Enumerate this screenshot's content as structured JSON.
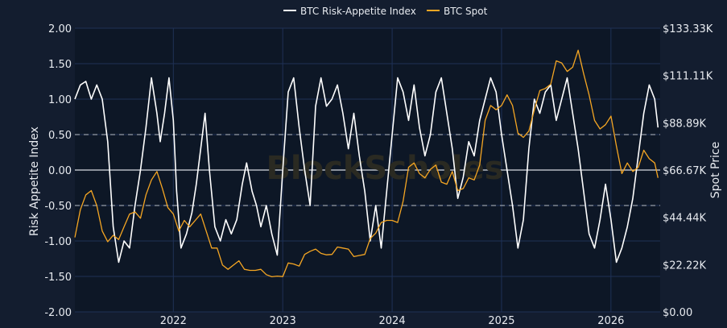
{
  "chart_data": {
    "type": "line",
    "legend_position": "top-center",
    "grid": true,
    "watermark": "BlockScholes",
    "left_axis": {
      "label": "Risk Appetite Index",
      "ylim": [
        -2.0,
        2.0
      ],
      "ticks": [
        "2.00",
        "1.50",
        "1.00",
        "0.50",
        "0.00",
        "-0.50",
        "-1.00",
        "-1.50",
        "-2.00"
      ],
      "tick_values": [
        2.0,
        1.5,
        1.0,
        0.5,
        0.0,
        -0.5,
        -1.0,
        -1.5,
        -2.0
      ]
    },
    "right_axis": {
      "label": "Spot Price",
      "ylim": [
        0,
        133330
      ],
      "ticks": [
        "$133.33K",
        "$111.11K",
        "$88.89K",
        "$66.67K",
        "$44.44K",
        "$22.22K",
        "$0.00"
      ],
      "tick_values": [
        133330,
        111110,
        88890,
        66670,
        44440,
        22220,
        0
      ]
    },
    "x_axis": {
      "range": [
        2021.1,
        2026.45
      ],
      "ticks": [
        "2022",
        "2023",
        "2024",
        "2025",
        "2026"
      ],
      "tick_values": [
        2022,
        2023,
        2024,
        2025,
        2026
      ]
    },
    "reference_lines": [
      {
        "value": 0.5,
        "style": "dashed"
      },
      {
        "value": 0.0,
        "style": "solid"
      },
      {
        "value": -0.5,
        "style": "dashed"
      }
    ],
    "series": [
      {
        "name": "BTC Risk-Appetite Index",
        "axis": "left",
        "color": "#ffffff",
        "points": [
          [
            2021.1,
            1.0
          ],
          [
            2021.15,
            1.2
          ],
          [
            2021.2,
            1.25
          ],
          [
            2021.25,
            1.0
          ],
          [
            2021.3,
            1.2
          ],
          [
            2021.35,
            1.0
          ],
          [
            2021.4,
            0.4
          ],
          [
            2021.45,
            -0.8
          ],
          [
            2021.5,
            -1.3
          ],
          [
            2021.55,
            -1.0
          ],
          [
            2021.6,
            -1.1
          ],
          [
            2021.65,
            -0.5
          ],
          [
            2021.7,
            0.0
          ],
          [
            2021.75,
            0.6
          ],
          [
            2021.8,
            1.3
          ],
          [
            2021.85,
            0.8
          ],
          [
            2021.88,
            0.4
          ],
          [
            2021.92,
            0.8
          ],
          [
            2021.96,
            1.3
          ],
          [
            2022.0,
            0.7
          ],
          [
            2022.03,
            -0.3
          ],
          [
            2022.07,
            -1.1
          ],
          [
            2022.12,
            -0.9
          ],
          [
            2022.17,
            -0.6
          ],
          [
            2022.21,
            -0.2
          ],
          [
            2022.25,
            0.3
          ],
          [
            2022.29,
            0.8
          ],
          [
            2022.33,
            0.0
          ],
          [
            2022.38,
            -0.8
          ],
          [
            2022.43,
            -1.0
          ],
          [
            2022.48,
            -0.7
          ],
          [
            2022.53,
            -0.9
          ],
          [
            2022.58,
            -0.7
          ],
          [
            2022.63,
            -0.2
          ],
          [
            2022.67,
            0.1
          ],
          [
            2022.72,
            -0.3
          ],
          [
            2022.76,
            -0.5
          ],
          [
            2022.8,
            -0.8
          ],
          [
            2022.85,
            -0.5
          ],
          [
            2022.9,
            -0.9
          ],
          [
            2022.95,
            -1.2
          ],
          [
            2023.0,
            0.0
          ],
          [
            2023.05,
            1.1
          ],
          [
            2023.1,
            1.3
          ],
          [
            2023.15,
            0.6
          ],
          [
            2023.2,
            0.0
          ],
          [
            2023.25,
            -0.5
          ],
          [
            2023.3,
            0.9
          ],
          [
            2023.35,
            1.3
          ],
          [
            2023.4,
            0.9
          ],
          [
            2023.45,
            1.0
          ],
          [
            2023.5,
            1.2
          ],
          [
            2023.55,
            0.8
          ],
          [
            2023.6,
            0.3
          ],
          [
            2023.65,
            0.8
          ],
          [
            2023.7,
            0.2
          ],
          [
            2023.75,
            -0.3
          ],
          [
            2023.8,
            -1.0
          ],
          [
            2023.85,
            -0.5
          ],
          [
            2023.9,
            -1.1
          ],
          [
            2023.95,
            -0.3
          ],
          [
            2024.0,
            0.5
          ],
          [
            2024.05,
            1.3
          ],
          [
            2024.1,
            1.1
          ],
          [
            2024.15,
            0.7
          ],
          [
            2024.2,
            1.2
          ],
          [
            2024.25,
            0.6
          ],
          [
            2024.3,
            0.2
          ],
          [
            2024.35,
            0.5
          ],
          [
            2024.4,
            1.1
          ],
          [
            2024.45,
            1.3
          ],
          [
            2024.5,
            0.8
          ],
          [
            2024.55,
            0.3
          ],
          [
            2024.6,
            -0.4
          ],
          [
            2024.65,
            -0.1
          ],
          [
            2024.7,
            0.4
          ],
          [
            2024.75,
            0.2
          ],
          [
            2024.8,
            0.7
          ],
          [
            2024.85,
            1.0
          ],
          [
            2024.9,
            1.3
          ],
          [
            2024.95,
            1.1
          ],
          [
            2025.0,
            0.5
          ],
          [
            2025.05,
            0.0
          ],
          [
            2025.1,
            -0.5
          ],
          [
            2025.15,
            -1.1
          ],
          [
            2025.2,
            -0.7
          ],
          [
            2025.25,
            0.3
          ],
          [
            2025.3,
            1.0
          ],
          [
            2025.35,
            0.8
          ],
          [
            2025.4,
            1.1
          ],
          [
            2025.45,
            1.2
          ],
          [
            2025.5,
            0.7
          ],
          [
            2025.55,
            1.0
          ],
          [
            2025.6,
            1.3
          ],
          [
            2025.65,
            0.8
          ],
          [
            2025.7,
            0.3
          ],
          [
            2025.75,
            -0.3
          ],
          [
            2025.8,
            -0.9
          ],
          [
            2025.85,
            -1.1
          ],
          [
            2025.9,
            -0.7
          ],
          [
            2025.95,
            -0.2
          ],
          [
            2026.0,
            -0.7
          ],
          [
            2026.05,
            -1.3
          ],
          [
            2026.1,
            -1.1
          ],
          [
            2026.15,
            -0.8
          ],
          [
            2026.2,
            -0.4
          ],
          [
            2026.25,
            0.2
          ],
          [
            2026.3,
            0.8
          ],
          [
            2026.35,
            1.2
          ],
          [
            2026.4,
            1.0
          ],
          [
            2026.43,
            0.6
          ]
        ]
      },
      {
        "name": "BTC Spot",
        "axis": "right",
        "color": "#f5a623",
        "points": [
          [
            2021.1,
            35000
          ],
          [
            2021.15,
            48000
          ],
          [
            2021.2,
            55000
          ],
          [
            2021.25,
            57000
          ],
          [
            2021.3,
            50000
          ],
          [
            2021.35,
            38000
          ],
          [
            2021.4,
            33000
          ],
          [
            2021.45,
            36000
          ],
          [
            2021.5,
            34000
          ],
          [
            2021.55,
            40000
          ],
          [
            2021.6,
            46000
          ],
          [
            2021.65,
            47000
          ],
          [
            2021.7,
            44000
          ],
          [
            2021.75,
            55000
          ],
          [
            2021.8,
            62000
          ],
          [
            2021.85,
            66000
          ],
          [
            2021.9,
            58000
          ],
          [
            2021.95,
            49000
          ],
          [
            2022.0,
            46000
          ],
          [
            2022.05,
            38000
          ],
          [
            2022.1,
            43000
          ],
          [
            2022.15,
            40000
          ],
          [
            2022.2,
            43000
          ],
          [
            2022.25,
            46000
          ],
          [
            2022.3,
            38000
          ],
          [
            2022.35,
            30000
          ],
          [
            2022.4,
            30000
          ],
          [
            2022.45,
            22000
          ],
          [
            2022.5,
            20000
          ],
          [
            2022.55,
            22000
          ],
          [
            2022.6,
            24000
          ],
          [
            2022.65,
            20000
          ],
          [
            2022.7,
            19500
          ],
          [
            2022.75,
            19500
          ],
          [
            2022.8,
            20000
          ],
          [
            2022.85,
            17500
          ],
          [
            2022.9,
            16500
          ],
          [
            2022.95,
            16800
          ],
          [
            2023.0,
            16600
          ],
          [
            2023.05,
            23000
          ],
          [
            2023.1,
            22500
          ],
          [
            2023.15,
            21500
          ],
          [
            2023.2,
            27000
          ],
          [
            2023.25,
            28500
          ],
          [
            2023.3,
            29500
          ],
          [
            2023.35,
            27500
          ],
          [
            2023.4,
            26800
          ],
          [
            2023.45,
            27000
          ],
          [
            2023.5,
            30500
          ],
          [
            2023.55,
            30000
          ],
          [
            2023.6,
            29500
          ],
          [
            2023.65,
            26000
          ],
          [
            2023.7,
            26500
          ],
          [
            2023.75,
            27000
          ],
          [
            2023.8,
            34500
          ],
          [
            2023.85,
            37000
          ],
          [
            2023.9,
            42000
          ],
          [
            2023.95,
            43000
          ],
          [
            2024.0,
            43000
          ],
          [
            2024.05,
            42000
          ],
          [
            2024.1,
            52000
          ],
          [
            2024.15,
            68000
          ],
          [
            2024.2,
            70000
          ],
          [
            2024.25,
            65000
          ],
          [
            2024.3,
            63000
          ],
          [
            2024.35,
            67000
          ],
          [
            2024.4,
            69000
          ],
          [
            2024.45,
            61000
          ],
          [
            2024.5,
            60000
          ],
          [
            2024.55,
            66000
          ],
          [
            2024.6,
            57000
          ],
          [
            2024.65,
            58000
          ],
          [
            2024.7,
            63000
          ],
          [
            2024.75,
            62000
          ],
          [
            2024.8,
            69000
          ],
          [
            2024.85,
            90000
          ],
          [
            2024.9,
            97000
          ],
          [
            2024.95,
            95000
          ],
          [
            2025.0,
            97000
          ],
          [
            2025.05,
            102000
          ],
          [
            2025.1,
            97000
          ],
          [
            2025.15,
            84000
          ],
          [
            2025.2,
            82000
          ],
          [
            2025.25,
            85000
          ],
          [
            2025.3,
            95000
          ],
          [
            2025.35,
            104000
          ],
          [
            2025.4,
            105000
          ],
          [
            2025.45,
            107000
          ],
          [
            2025.5,
            118000
          ],
          [
            2025.55,
            117000
          ],
          [
            2025.6,
            113000
          ],
          [
            2025.65,
            115000
          ],
          [
            2025.7,
            123000
          ],
          [
            2025.75,
            112000
          ],
          [
            2025.8,
            102000
          ],
          [
            2025.85,
            90000
          ],
          [
            2025.9,
            86000
          ],
          [
            2025.95,
            88000
          ],
          [
            2026.0,
            92000
          ],
          [
            2026.05,
            78000
          ],
          [
            2026.1,
            65000
          ],
          [
            2026.15,
            70000
          ],
          [
            2026.2,
            66000
          ],
          [
            2026.25,
            68000
          ],
          [
            2026.3,
            76000
          ],
          [
            2026.35,
            72000
          ],
          [
            2026.4,
            70000
          ],
          [
            2026.43,
            63000
          ]
        ]
      }
    ]
  }
}
